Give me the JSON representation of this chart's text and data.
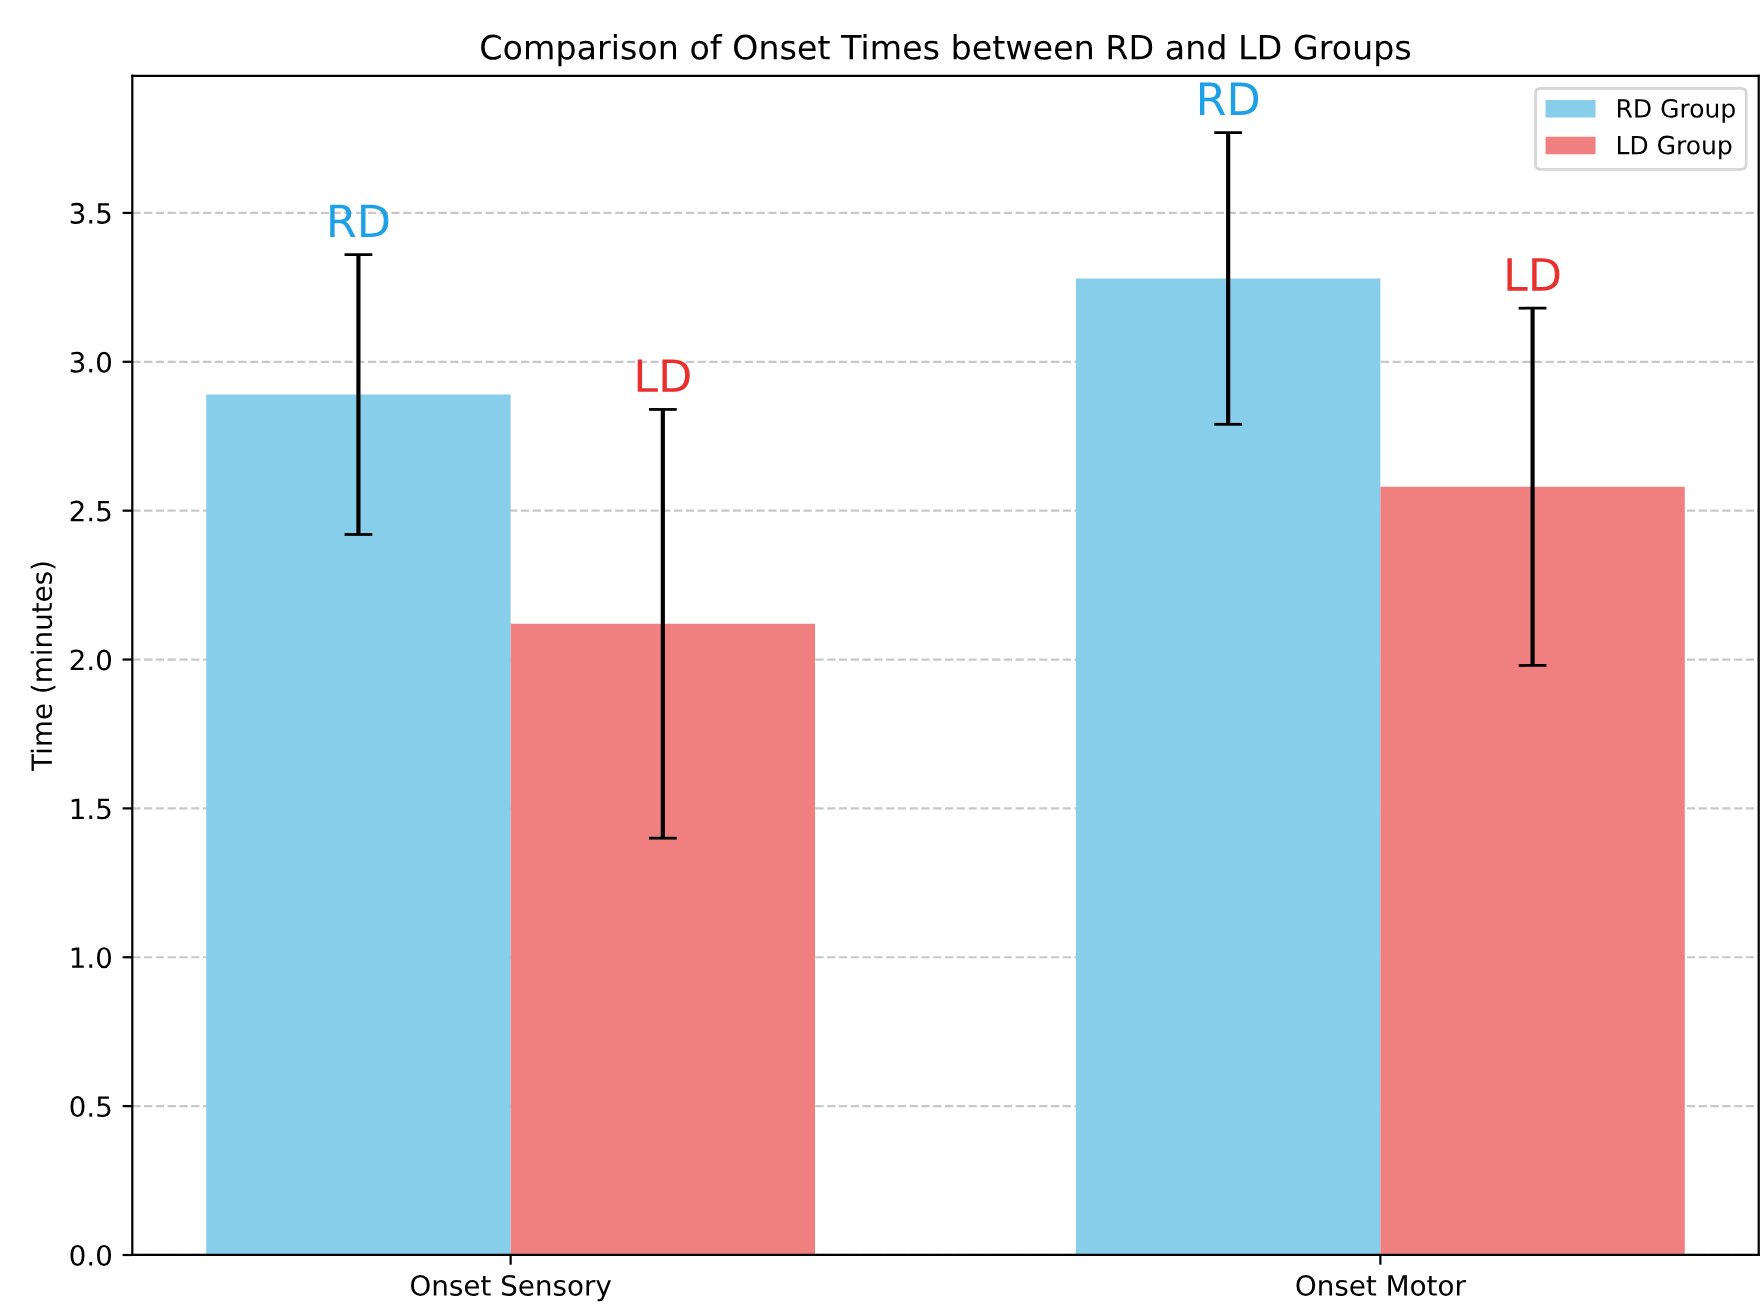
{
  "chart_data": {
    "type": "bar",
    "title": "Comparison of Onset Times between RD and LD Groups",
    "ylabel": "Time (minutes)",
    "categories": [
      "Onset Sensory",
      "Onset Motor"
    ],
    "series": [
      {
        "name": "RD Group",
        "color": "#87ceeb",
        "values": [
          2.89,
          3.28
        ],
        "errors": [
          0.47,
          0.49
        ]
      },
      {
        "name": "LD Group",
        "color": "#f08080",
        "values": [
          2.12,
          2.58
        ],
        "errors": [
          0.72,
          0.6
        ]
      }
    ],
    "annotations": [
      "RD",
      "LD",
      "RD",
      "LD"
    ],
    "ylim": [
      0,
      3.96
    ],
    "yticks": [
      {
        "value": 0,
        "label": "0.0"
      },
      0.5,
      {
        "value": 1,
        "label": "1.0"
      },
      1.5,
      {
        "value": 2,
        "label": "2.0"
      },
      2.5,
      {
        "value": 3,
        "label": "3.0"
      },
      3.5
    ],
    "grid": "y",
    "legend": "top right"
  }
}
